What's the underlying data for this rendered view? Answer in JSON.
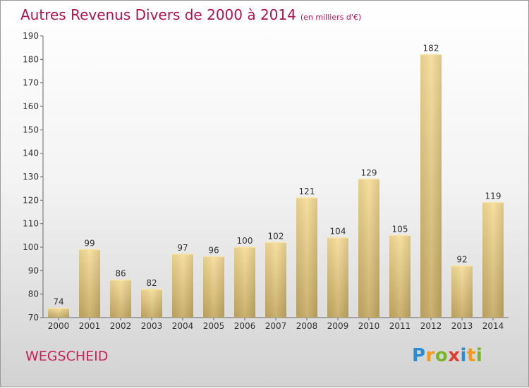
{
  "header": {
    "title": "Autres Revenus Divers de 2000 à 2014",
    "subtitle": "(en milliers d'€)"
  },
  "footer": {
    "commune": "WEGSCHEID",
    "logo_text": "Proxiti"
  },
  "colors": {
    "title": "#b0134f",
    "bar_light": "#f5dc96",
    "bar_dark": "#c4a963",
    "axis": "#555555"
  },
  "chart_data": {
    "type": "bar",
    "title": "Autres Revenus Divers de 2000 à 2014",
    "subtitle": "(en milliers d'€)",
    "xlabel": "",
    "ylabel": "",
    "categories": [
      "2000",
      "2001",
      "2002",
      "2003",
      "2004",
      "2005",
      "2006",
      "2007",
      "2008",
      "2009",
      "2010",
      "2011",
      "2012",
      "2013",
      "2014"
    ],
    "values": [
      74,
      99,
      86,
      82,
      97,
      96,
      100,
      102,
      121,
      104,
      129,
      105,
      182,
      92,
      119
    ],
    "ylim": [
      70,
      190
    ],
    "yticks": [
      70,
      80,
      90,
      100,
      110,
      120,
      130,
      140,
      150,
      160,
      170,
      180,
      190
    ],
    "grid": false,
    "data_labels": true
  }
}
